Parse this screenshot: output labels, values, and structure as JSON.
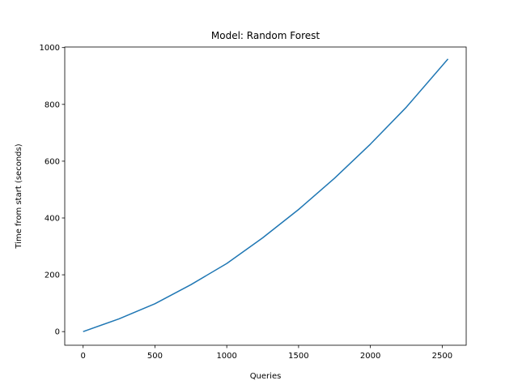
{
  "chart_data": {
    "type": "line",
    "title": "Model: Random Forest",
    "xlabel": "Queries",
    "ylabel": "Time from start (seconds)",
    "xlim": [
      -128,
      2667
    ],
    "ylim": [
      -48,
      1002
    ],
    "xticks": [
      0,
      500,
      1000,
      1500,
      2000,
      2500
    ],
    "yticks": [
      0,
      200,
      400,
      600,
      800,
      1000
    ],
    "grid": false,
    "series": [
      {
        "color": "#1f77b4",
        "x": [
          0,
          250,
          500,
          750,
          1000,
          1250,
          1500,
          1750,
          2000,
          2250,
          2540
        ],
        "y": [
          0,
          45,
          98,
          165,
          240,
          330,
          430,
          540,
          660,
          790,
          960
        ]
      }
    ]
  }
}
